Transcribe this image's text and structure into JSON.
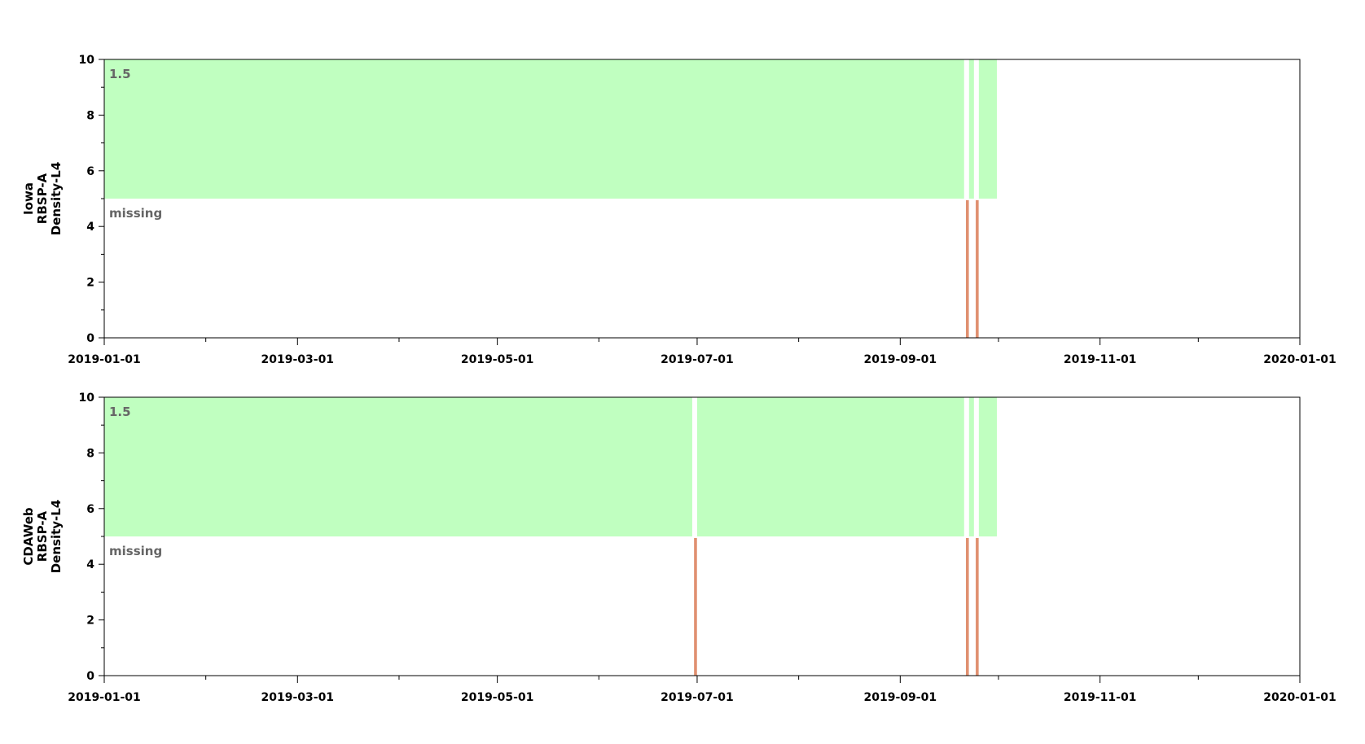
{
  "chart_data": [
    {
      "type": "area",
      "ylabel_lines": [
        "Iowa",
        "RBSP-A",
        "Density-L4"
      ],
      "xlim": [
        "2019-01-01",
        "2020-01-01"
      ],
      "ylim": [
        0,
        10
      ],
      "yticks": [
        0,
        2,
        4,
        6,
        8,
        10
      ],
      "xticks": [
        "2019-01-01",
        "2019-03-01",
        "2019-05-01",
        "2019-07-01",
        "2019-09-01",
        "2019-11-01",
        "2020-01-01"
      ],
      "xminor_ticks": [
        "2019-02-01",
        "2019-04-01",
        "2019-06-01",
        "2019-08-01",
        "2019-10-01",
        "2019-12-01"
      ],
      "series": [
        {
          "segments": [
            {
              "start": "2019-01-01",
              "end": "2019-09-21",
              "y0": 5,
              "y1": 10
            },
            {
              "start": "2019-09-22",
              "end": "2019-09-24",
              "y0": 5,
              "y1": 10
            },
            {
              "start": "2019-09-25",
              "end": "2019-10-01",
              "y0": 5,
              "y1": 10
            }
          ]
        },
        {
          "segments": [
            {
              "start": "2019-09-21",
              "end": "2019-09-22",
              "y0": 0,
              "y1": 5
            },
            {
              "start": "2019-09-24",
              "end": "2019-09-25",
              "y0": 0,
              "y1": 5
            }
          ]
        }
      ],
      "annotations": [
        {
          "text": "1.5",
          "y": 9.5
        },
        {
          "text": "missing",
          "y": 4.5
        }
      ]
    },
    {
      "type": "area",
      "ylabel_lines": [
        "CDAWeb",
        "RBSP-A",
        "Density-L4"
      ],
      "xlim": [
        "2019-01-01",
        "2020-01-01"
      ],
      "ylim": [
        0,
        10
      ],
      "yticks": [
        0,
        2,
        4,
        6,
        8,
        10
      ],
      "xticks": [
        "2019-01-01",
        "2019-03-01",
        "2019-05-01",
        "2019-07-01",
        "2019-09-01",
        "2019-11-01",
        "2020-01-01"
      ],
      "xminor_ticks": [
        "2019-02-01",
        "2019-04-01",
        "2019-06-01",
        "2019-08-01",
        "2019-10-01",
        "2019-12-01"
      ],
      "series": [
        {
          "segments": [
            {
              "start": "2019-01-01",
              "end": "2019-06-30",
              "y0": 5,
              "y1": 10
            },
            {
              "start": "2019-07-01",
              "end": "2019-09-21",
              "y0": 5,
              "y1": 10
            },
            {
              "start": "2019-09-22",
              "end": "2019-09-24",
              "y0": 5,
              "y1": 10
            },
            {
              "start": "2019-09-25",
              "end": "2019-10-01",
              "y0": 5,
              "y1": 10
            }
          ]
        },
        {
          "segments": [
            {
              "start": "2019-06-30",
              "end": "2019-07-01",
              "y0": 0,
              "y1": 5
            },
            {
              "start": "2019-09-21",
              "end": "2019-09-22",
              "y0": 0,
              "y1": 5
            },
            {
              "start": "2019-09-24",
              "end": "2019-09-25",
              "y0": 0,
              "y1": 5
            }
          ]
        }
      ],
      "annotations": [
        {
          "text": "1.5",
          "y": 9.5
        },
        {
          "text": "missing",
          "y": 4.5
        }
      ]
    }
  ],
  "colors": {
    "present": "#c0ffc0",
    "missing": "#e09070",
    "axis": "#000000",
    "annotation": "#666666"
  }
}
